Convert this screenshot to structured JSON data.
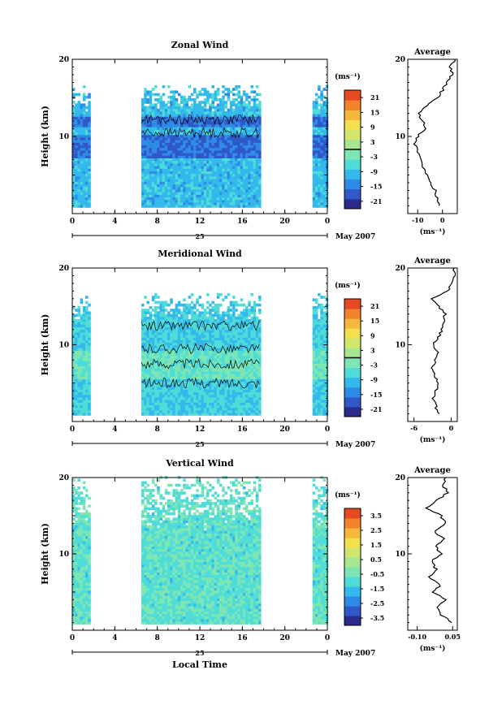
{
  "figure": {
    "date_label": "May 2007",
    "day_label": "25",
    "xlabel": "Local Time",
    "xticks": [
      "0",
      "4",
      "8",
      "12",
      "16",
      "20",
      "0"
    ],
    "yticks": [
      "10",
      "20"
    ],
    "ylabel": "Height (km)",
    "unit_label": "(ms⁻¹)",
    "avg_title": "Average",
    "avg_unit": "(ms⁻¹)"
  },
  "chart_data": [
    {
      "type": "heatmap",
      "title": "Zonal Wind",
      "ylabel": "Height (km)",
      "xlabel": "",
      "xlim": [
        0,
        24
      ],
      "ylim": [
        0,
        20
      ],
      "xticks": [
        0,
        4,
        8,
        12,
        16,
        20,
        24
      ],
      "yticks": [
        10,
        20
      ],
      "colorbar_ticks": [
        "21",
        "15",
        "9",
        "3",
        "-3",
        "-9",
        "-15",
        "-21"
      ],
      "colorbar_range": [
        -24,
        24
      ],
      "colorbar_marker": 0,
      "data_segments_hours": [
        [
          0,
          1.7
        ],
        [
          6.5,
          17.7
        ],
        [
          22.6,
          24
        ]
      ],
      "data_height_km": [
        0.8,
        16.5
      ],
      "profile_values_km_vs_ms": [
        [
          1,
          -1
        ],
        [
          2,
          -2
        ],
        [
          3,
          -3
        ],
        [
          4,
          -5
        ],
        [
          5,
          -6
        ],
        [
          6,
          -8
        ],
        [
          7,
          -9
        ],
        [
          8,
          -10
        ],
        [
          9,
          -11
        ],
        [
          10,
          -10
        ],
        [
          11,
          -7
        ],
        [
          12,
          -8
        ],
        [
          13,
          -10
        ],
        [
          14,
          -6
        ],
        [
          15,
          -2
        ],
        [
          16,
          0
        ],
        [
          17,
          2
        ],
        [
          18,
          4
        ],
        [
          19,
          3
        ],
        [
          20,
          5
        ]
      ],
      "profile_xlim": [
        -14,
        6
      ],
      "profile_xticks": [
        "-10",
        "0"
      ],
      "profile_ylabel": [
        "10",
        "20"
      ]
    },
    {
      "type": "heatmap",
      "title": "Meridional Wind",
      "ylabel": "Height (km)",
      "xlabel": "",
      "xlim": [
        0,
        24
      ],
      "ylim": [
        0,
        20
      ],
      "xticks": [
        0,
        4,
        8,
        12,
        16,
        20,
        24
      ],
      "yticks": [
        10,
        20
      ],
      "colorbar_ticks": [
        "21",
        "15",
        "9",
        "3",
        "-3",
        "-9",
        "-15",
        "-21"
      ],
      "colorbar_range": [
        -24,
        24
      ],
      "colorbar_marker": 0,
      "data_segments_hours": [
        [
          0,
          1.7
        ],
        [
          6.5,
          17.7
        ],
        [
          22.6,
          24
        ]
      ],
      "data_height_km": [
        0.8,
        16.5
      ],
      "profile_values_km_vs_ms": [
        [
          1,
          -2
        ],
        [
          2,
          -2.5
        ],
        [
          3,
          -3
        ],
        [
          4,
          -2.5
        ],
        [
          5,
          -2
        ],
        [
          6,
          -2.8
        ],
        [
          7,
          -3
        ],
        [
          8,
          -2.5
        ],
        [
          9,
          -2
        ],
        [
          10,
          -3
        ],
        [
          11,
          -2
        ],
        [
          12,
          -1.5
        ],
        [
          13,
          -1
        ],
        [
          14,
          -1
        ],
        [
          15,
          -2
        ],
        [
          16,
          -3
        ],
        [
          17,
          -0.5
        ],
        [
          18,
          0
        ],
        [
          19,
          0.5
        ],
        [
          20,
          0.5
        ]
      ],
      "profile_xlim": [
        -7,
        1
      ],
      "profile_xticks": [
        "-6",
        "0"
      ]
    },
    {
      "type": "heatmap",
      "title": "Vertical Wind",
      "ylabel": "Height (km)",
      "xlabel": "Local Time",
      "xlim": [
        0,
        24
      ],
      "ylim": [
        0,
        20
      ],
      "xticks": [
        0,
        4,
        8,
        12,
        16,
        20,
        24
      ],
      "yticks": [
        10,
        20
      ],
      "colorbar_ticks": [
        "3.5",
        "2.5",
        "1.5",
        "0.5",
        "-0.5",
        "-1.5",
        "-2.5",
        "-3.5"
      ],
      "colorbar_range": [
        -4,
        4
      ],
      "data_segments_hours": [
        [
          0,
          1.7
        ],
        [
          6.5,
          17.7
        ],
        [
          22.6,
          24
        ]
      ],
      "data_height_km": [
        0.8,
        20
      ],
      "profile_values_km_vs_ms": [
        [
          1,
          0.05
        ],
        [
          2,
          0.0
        ],
        [
          3,
          -0.02
        ],
        [
          4,
          0.02
        ],
        [
          5,
          -0.03
        ],
        [
          6,
          0.0
        ],
        [
          7,
          -0.05
        ],
        [
          8,
          -0.02
        ],
        [
          9,
          -0.04
        ],
        [
          10,
          0.0
        ],
        [
          11,
          -0.02
        ],
        [
          12,
          0.01
        ],
        [
          13,
          -0.03
        ],
        [
          14,
          0.02
        ],
        [
          15,
          0.0
        ],
        [
          16,
          -0.06
        ],
        [
          17,
          -0.02
        ],
        [
          18,
          0.03
        ],
        [
          19,
          0.01
        ],
        [
          20,
          0.02
        ]
      ],
      "profile_xlim": [
        -0.14,
        0.07
      ],
      "profile_xticks": [
        "-0.10",
        "0.05"
      ]
    }
  ]
}
